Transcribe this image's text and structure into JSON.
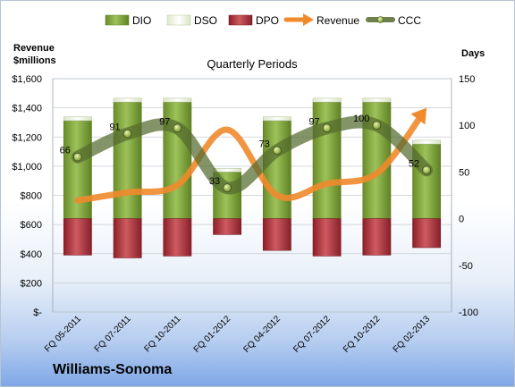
{
  "company": "Williams-Sonoma",
  "chart_data": {
    "type": "bar",
    "title": "Quarterly Periods",
    "ylabel_left": "Revenue\n$millions",
    "ylabel_right": "Days",
    "categories": [
      "FQ 05-2011",
      "FQ 07-2011",
      "FQ 10-2011",
      "FQ 01-2012",
      "FQ 04-2012",
      "FQ 07-2012",
      "FQ 10-2012",
      "FQ 02-2013"
    ],
    "left_axis": {
      "min": 0,
      "max": 1600,
      "step": 200,
      "tick_labels": [
        "$-",
        "$200",
        "$400",
        "$600",
        "$800",
        "$1,000",
        "$1,200",
        "$1,400",
        "$1,600"
      ]
    },
    "right_axis": {
      "min": -100,
      "max": 150,
      "step": 50,
      "tick_labels": [
        "-100",
        "-50",
        "0",
        "50",
        "100",
        "150"
      ]
    },
    "legend_position": "top",
    "grid": true,
    "series": [
      {
        "name": "DIO",
        "type": "stacked-bar",
        "axis": "right",
        "color": "#7ea33a",
        "values": [
          105,
          125,
          125,
          50,
          105,
          125,
          125,
          80
        ]
      },
      {
        "name": "DSO",
        "type": "stacked-bar",
        "axis": "right",
        "color": "#f2f7e8",
        "values": [
          4,
          4,
          4,
          4,
          4,
          4,
          4,
          4
        ]
      },
      {
        "name": "DPO",
        "type": "stacked-bar",
        "axis": "right",
        "color": "#b5313a",
        "values": [
          -39,
          -42,
          -40,
          -17,
          -34,
          -40,
          -39,
          -31
        ]
      },
      {
        "name": "Revenue",
        "type": "line",
        "axis": "left",
        "color": "#f08a2c",
        "values": [
          765,
          820,
          870,
          1250,
          800,
          880,
          950,
          1400
        ]
      },
      {
        "name": "CCC",
        "type": "line",
        "axis": "right",
        "color": "#556b2f",
        "values": [
          66,
          91,
          97,
          33,
          73,
          97,
          100,
          52
        ]
      }
    ],
    "data_labels": [
      "66",
      "91",
      "97",
      "33",
      "73",
      "97",
      "100",
      "52"
    ]
  }
}
